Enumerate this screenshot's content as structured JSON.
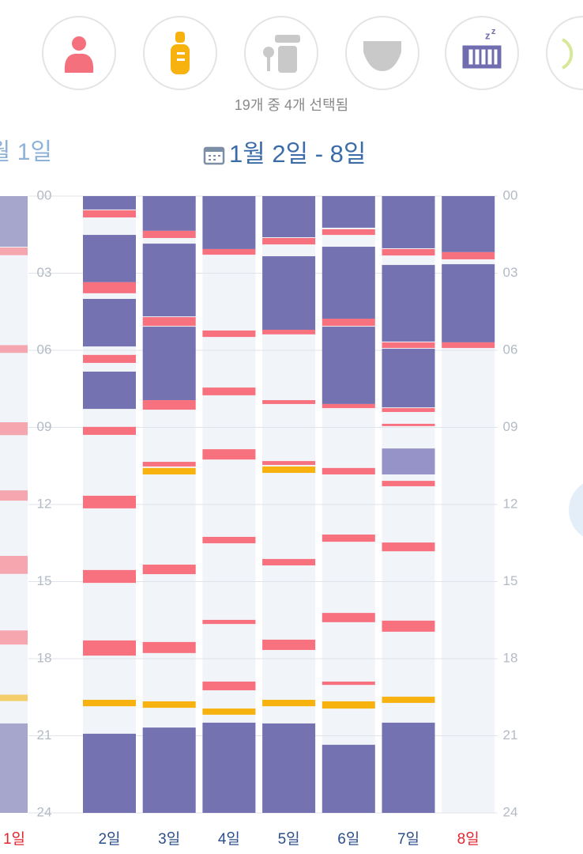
{
  "header": {
    "selected_text": "19개 중 4개 선택됨",
    "prev_week_label": "월 1일",
    "week_title": "1월 2일 - 8일"
  },
  "timeline": {
    "ylim": [
      0,
      24
    ],
    "yticks": [
      {
        "value": 0,
        "label": "00"
      },
      {
        "value": 3,
        "label": "03"
      },
      {
        "value": 6,
        "label": "06"
      },
      {
        "value": 9,
        "label": "09"
      },
      12,
      15,
      18,
      21,
      24
    ],
    "colors": {
      "sleep": "#7472b0",
      "light_sleep": "#9593c7",
      "feed": "#f8717f",
      "bottle": "#f7b20f"
    },
    "prev_day": {
      "label": "1일",
      "label_color": "#e0262f",
      "sleep": [
        [
          0,
          1.97
        ],
        [
          20.52,
          24
        ]
      ],
      "feed": [
        [
          2,
          2.3
        ],
        [
          5.8,
          6.1
        ],
        [
          8.8,
          9.3
        ],
        [
          11.45,
          11.85
        ],
        [
          14,
          14.7
        ],
        [
          16.9,
          17.45
        ]
      ],
      "bottle": [
        [
          19.4,
          19.65
        ]
      ]
    },
    "days": [
      {
        "label": "2일",
        "label_color": "#2b4e8c",
        "sleep": [
          [
            0,
            0.52
          ],
          [
            1.51,
            3.35
          ],
          [
            4,
            5.85
          ],
          [
            6.83,
            8.28
          ],
          [
            20.92,
            24
          ]
        ],
        "light_sleep": [],
        "feed": [
          [
            0.55,
            0.83
          ],
          [
            3.35,
            3.78
          ],
          [
            6.18,
            6.49
          ],
          [
            8.98,
            9.29
          ],
          [
            11.66,
            12.15
          ],
          [
            14.55,
            15.05
          ],
          [
            17.29,
            17.88
          ]
        ],
        "bottle": [
          [
            19.6,
            19.85
          ]
        ]
      },
      {
        "label": "3일",
        "label_color": "#2b4e8c",
        "sleep": [
          [
            0,
            1.35
          ],
          [
            1.85,
            4.68
          ],
          [
            5.08,
            7.94
          ],
          [
            20.68,
            24
          ]
        ],
        "light_sleep": [],
        "feed": [
          [
            1.35,
            1.63
          ],
          [
            4.71,
            5.05
          ],
          [
            7.94,
            8.31
          ],
          [
            10.34,
            10.52
          ],
          [
            14.34,
            14.71
          ],
          [
            17.35,
            17.78
          ]
        ],
        "bottle": [
          [
            10.58,
            10.83
          ],
          [
            19.66,
            19.91
          ]
        ]
      },
      {
        "label": "4일",
        "label_color": "#2b4e8c",
        "sleep": [
          [
            0,
            2.06
          ],
          [
            20.49,
            24
          ]
        ],
        "light_sleep": [],
        "feed": [
          [
            2.06,
            2.28
          ],
          [
            5.23,
            5.48
          ],
          [
            7.45,
            7.75
          ],
          [
            9.85,
            10.25
          ],
          [
            13.26,
            13.51
          ],
          [
            16.49,
            16.65
          ],
          [
            18.89,
            19.23
          ]
        ],
        "bottle": [
          [
            19.94,
            20.18
          ]
        ]
      },
      {
        "label": "5일",
        "label_color": "#2b4e8c",
        "sleep": [
          [
            0,
            1.6
          ],
          [
            2.34,
            5.2
          ],
          [
            20.52,
            24
          ]
        ],
        "light_sleep": [],
        "feed": [
          [
            1.63,
            1.88
          ],
          [
            5.2,
            5.38
          ],
          [
            7.94,
            8.09
          ],
          [
            10.31,
            10.46
          ],
          [
            14.12,
            14.37
          ],
          [
            17.26,
            17.66
          ]
        ],
        "bottle": [
          [
            10.52,
            10.77
          ],
          [
            19.6,
            19.85
          ]
        ]
      },
      {
        "label": "6일",
        "label_color": "#2b4e8c",
        "sleep": [
          [
            0,
            1.23
          ],
          [
            1.97,
            4.77
          ],
          [
            5.08,
            8.09
          ],
          [
            21.35,
            24
          ]
        ],
        "light_sleep": [],
        "feed": [
          [
            1.29,
            1.51
          ],
          [
            4.77,
            5.05
          ],
          [
            8.09,
            8.25
          ],
          [
            10.58,
            10.83
          ],
          [
            13.17,
            13.45
          ],
          [
            16.22,
            16.58
          ],
          [
            18.89,
            19.02
          ]
        ],
        "bottle": [
          [
            19.66,
            19.94
          ]
        ]
      },
      {
        "label": "7일",
        "label_color": "#2b4e8c",
        "sleep": [
          [
            0,
            2.03
          ],
          [
            2.68,
            5.66
          ],
          [
            5.94,
            8.22
          ],
          [
            20.49,
            24
          ]
        ],
        "light_sleep": [
          [
            9.82,
            10.83
          ]
        ],
        "feed": [
          [
            2.06,
            2.31
          ],
          [
            5.69,
            5.91
          ],
          [
            8.25,
            8.4
          ],
          [
            8.86,
            8.95
          ],
          [
            11.08,
            11.29
          ],
          [
            13.48,
            13.82
          ],
          [
            16.52,
            16.95
          ]
        ],
        "bottle": [
          [
            19.48,
            19.72
          ]
        ]
      },
      {
        "label": "8일",
        "label_color": "#e0262f",
        "sleep": [
          [
            0,
            2.18
          ],
          [
            2.65,
            5.69
          ]
        ],
        "light_sleep": [],
        "feed": [
          [
            2.18,
            2.46
          ],
          [
            5.69,
            5.91
          ]
        ],
        "bottle": []
      }
    ]
  }
}
